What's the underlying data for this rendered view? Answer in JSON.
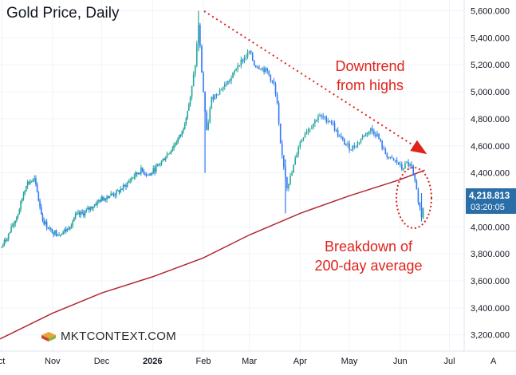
{
  "title": "Gold Price, Daily",
  "annotations": {
    "downtrend": [
      "Downtrend",
      "from highs"
    ],
    "breakdown": [
      "Breakdown of",
      "200-day average"
    ]
  },
  "logo_text": "MKTCONTEXT.COM",
  "price_label": {
    "value": "4,218.813",
    "countdown": "03:20:05"
  },
  "axis_corner_label": "A",
  "colors": {
    "up": "#26a69a",
    "down": "#3179f5",
    "ma": "#b22833",
    "annotation": "#e0221b",
    "price_label_bg": "#2a6ea8"
  },
  "chart_data": {
    "type": "candlestick",
    "title": "Gold Price, Daily",
    "y_ticks": [
      "3,200.000",
      "3,400.000",
      "3,600.000",
      "3,800.000",
      "4,000.000",
      "4,200.000",
      "4,400.000",
      "4,600.000",
      "4,800.000",
      "5,000.000",
      "5,200.000",
      "5,400.000",
      "5,600.000"
    ],
    "y_tick_values": [
      3200,
      3400,
      3600,
      3800,
      4000,
      4200,
      4400,
      4600,
      4800,
      5000,
      5200,
      5400,
      5600
    ],
    "ylim": [
      3080,
      5680
    ],
    "x_ticks": [
      {
        "label": "ct",
        "date": "2025-10-01",
        "bold": false
      },
      {
        "label": "Nov",
        "date": "2025-11-01",
        "bold": false
      },
      {
        "label": "Dec",
        "date": "2025-12-01",
        "bold": false
      },
      {
        "label": "2026",
        "date": "2026-01-01",
        "bold": true
      },
      {
        "label": "Feb",
        "date": "2026-02-01",
        "bold": false
      },
      {
        "label": "Mar",
        "date": "2026-03-01",
        "bold": false
      },
      {
        "label": "Apr",
        "date": "2026-04-01",
        "bold": false
      },
      {
        "label": "May",
        "date": "2026-05-01",
        "bold": false
      },
      {
        "label": "Jun",
        "date": "2026-06-01",
        "bold": false
      },
      {
        "label": "Jul",
        "date": "2026-07-01",
        "bold": false
      }
    ],
    "xlim": [
      "2025-09-30",
      "2026-07-10"
    ],
    "series": [
      {
        "type": "candlestick",
        "points": [
          {
            "x": "2025-10-01",
            "y": 3850
          },
          {
            "x": "2025-10-06",
            "y": 3960
          },
          {
            "x": "2025-10-11",
            "y": 4100
          },
          {
            "x": "2025-10-16",
            "y": 4320
          },
          {
            "x": "2025-10-21",
            "y": 4350
          },
          {
            "x": "2025-10-26",
            "y": 4050
          },
          {
            "x": "2025-10-31",
            "y": 3970
          },
          {
            "x": "2025-11-05",
            "y": 3950
          },
          {
            "x": "2025-11-10",
            "y": 3980
          },
          {
            "x": "2025-11-15",
            "y": 4080
          },
          {
            "x": "2025-11-20",
            "y": 4100
          },
          {
            "x": "2025-11-25",
            "y": 4150
          },
          {
            "x": "2025-11-30",
            "y": 4200
          },
          {
            "x": "2025-12-05",
            "y": 4230
          },
          {
            "x": "2025-12-10",
            "y": 4250
          },
          {
            "x": "2025-12-15",
            "y": 4300
          },
          {
            "x": "2025-12-20",
            "y": 4370
          },
          {
            "x": "2025-12-25",
            "y": 4420
          },
          {
            "x": "2025-12-30",
            "y": 4380
          },
          {
            "x": "2026-01-04",
            "y": 4450
          },
          {
            "x": "2026-01-09",
            "y": 4520
          },
          {
            "x": "2026-01-14",
            "y": 4600
          },
          {
            "x": "2026-01-19",
            "y": 4700
          },
          {
            "x": "2026-01-24",
            "y": 4950
          },
          {
            "x": "2026-01-27",
            "y": 5200
          },
          {
            "x": "2026-01-29",
            "y": 5500
          },
          {
            "x": "2026-01-31",
            "y": 5150
          },
          {
            "x": "2026-02-03",
            "y": 4700
          },
          {
            "x": "2026-02-06",
            "y": 4950
          },
          {
            "x": "2026-02-10",
            "y": 5000
          },
          {
            "x": "2026-02-14",
            "y": 5050
          },
          {
            "x": "2026-02-18",
            "y": 5100
          },
          {
            "x": "2026-02-22",
            "y": 5200
          },
          {
            "x": "2026-02-26",
            "y": 5250
          },
          {
            "x": "2026-03-01",
            "y": 5300
          },
          {
            "x": "2026-03-04",
            "y": 5200
          },
          {
            "x": "2026-03-08",
            "y": 5180
          },
          {
            "x": "2026-03-12",
            "y": 5150
          },
          {
            "x": "2026-03-16",
            "y": 5050
          },
          {
            "x": "2026-03-18",
            "y": 4900
          },
          {
            "x": "2026-03-20",
            "y": 4600
          },
          {
            "x": "2026-03-22",
            "y": 4450
          },
          {
            "x": "2026-03-24",
            "y": 4300
          },
          {
            "x": "2026-03-27",
            "y": 4400
          },
          {
            "x": "2026-03-31",
            "y": 4600
          },
          {
            "x": "2026-04-04",
            "y": 4700
          },
          {
            "x": "2026-04-08",
            "y": 4750
          },
          {
            "x": "2026-04-12",
            "y": 4820
          },
          {
            "x": "2026-04-16",
            "y": 4800
          },
          {
            "x": "2026-04-20",
            "y": 4780
          },
          {
            "x": "2026-04-24",
            "y": 4680
          },
          {
            "x": "2026-04-28",
            "y": 4620
          },
          {
            "x": "2026-05-02",
            "y": 4580
          },
          {
            "x": "2026-05-06",
            "y": 4620
          },
          {
            "x": "2026-05-10",
            "y": 4680
          },
          {
            "x": "2026-05-14",
            "y": 4720
          },
          {
            "x": "2026-05-18",
            "y": 4680
          },
          {
            "x": "2026-05-22",
            "y": 4560
          },
          {
            "x": "2026-05-26",
            "y": 4500
          },
          {
            "x": "2026-05-30",
            "y": 4480
          },
          {
            "x": "2026-06-02",
            "y": 4430
          },
          {
            "x": "2026-06-05",
            "y": 4470
          },
          {
            "x": "2026-06-08",
            "y": 4440
          },
          {
            "x": "2026-06-10",
            "y": 4320
          },
          {
            "x": "2026-06-12",
            "y": 4200
          },
          {
            "x": "2026-06-14",
            "y": 4080
          },
          {
            "x": "2026-06-16",
            "y": 4220
          }
        ]
      },
      {
        "type": "line",
        "points": [
          {
            "x": "2025-09-30",
            "y": 3170
          },
          {
            "x": "2025-11-01",
            "y": 3360
          },
          {
            "x": "2025-12-01",
            "y": 3510
          },
          {
            "x": "2026-01-01",
            "y": 3630
          },
          {
            "x": "2026-02-01",
            "y": 3770
          },
          {
            "x": "2026-03-01",
            "y": 3940
          },
          {
            "x": "2026-04-01",
            "y": 4100
          },
          {
            "x": "2026-05-01",
            "y": 4230
          },
          {
            "x": "2026-06-01",
            "y": 4350
          },
          {
            "x": "2026-06-16",
            "y": 4420
          }
        ]
      }
    ]
  }
}
